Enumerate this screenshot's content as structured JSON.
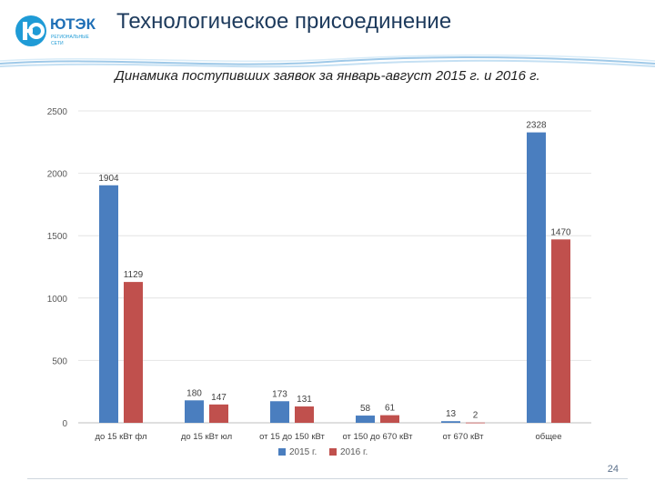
{
  "header": {
    "title": "Технологическое присоединение",
    "logo_text": "ЮТЭК",
    "logo_subtitle": [
      "РЕГИОНАЛЬНЫЕ",
      "СЕТИ"
    ]
  },
  "colors": {
    "series_2015": "#4a7ebf",
    "series_2016": "#c0504d",
    "title": "#1d3a5c"
  },
  "chart_data": {
    "type": "bar",
    "title": "Динамика поступивших заявок за январь-август 2015 г. и 2016 г.",
    "categories": [
      "до 15 кВт фл",
      "до 15 кВт юл",
      "от 15 до 150 кВт",
      "от 150 до 670 кВт",
      "от 670 кВт",
      "общее"
    ],
    "series": [
      {
        "name": "2015 г.",
        "values": [
          1904,
          180,
          173,
          58,
          13,
          2328
        ]
      },
      {
        "name": "2016 г.",
        "values": [
          1129,
          147,
          131,
          61,
          2,
          1470
        ]
      }
    ],
    "y_ticks": [
      0,
      500,
      1000,
      1500,
      2000,
      2500
    ],
    "ylim": [
      0,
      2500
    ],
    "grid": true,
    "legend_position": "bottom"
  },
  "footer": {
    "page_number": "24"
  }
}
